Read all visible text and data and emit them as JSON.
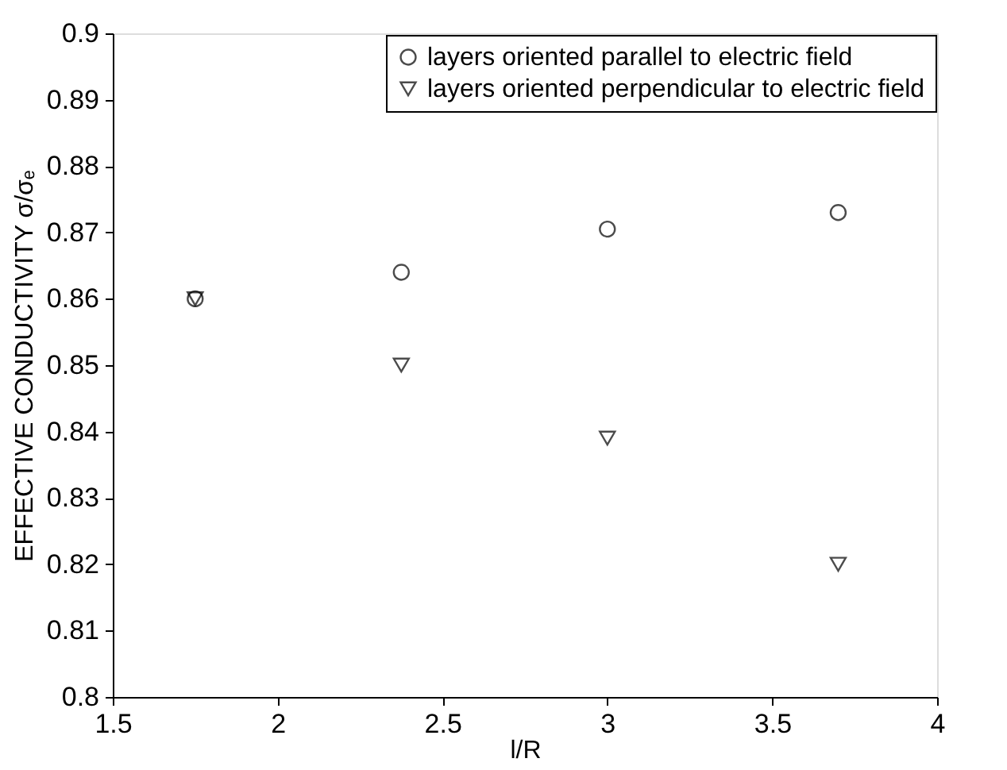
{
  "chart_data": {
    "type": "scatter",
    "xlabel": "l/R",
    "ylabel": "EFFECTIVE CONDUCTIVITY σ/σₑ",
    "x": [
      1.75,
      2.375,
      3,
      3.7
    ],
    "series": [
      {
        "name": "layers oriented parallel to electric field",
        "color": "#000000",
        "marker": "circle",
        "values": [
          0.86,
          0.864,
          0.8705,
          0.873
        ]
      },
      {
        "name": "layers oriented perpendicular to electric field",
        "color": "#000000",
        "marker": "triangle",
        "values": [
          0.86,
          0.85,
          0.839,
          0.82
        ]
      }
    ],
    "xlim": [
      1.5,
      4
    ],
    "xticks": [
      1.5,
      2,
      2.5,
      3,
      3.5,
      4
    ],
    "ylim": [
      0.8,
      0.9
    ],
    "yticks": [
      0.8,
      0.81,
      0.82,
      0.83,
      0.84,
      0.85,
      0.86,
      0.87,
      0.88,
      0.89,
      0.9
    ],
    "grid": false,
    "legend": "top right"
  }
}
